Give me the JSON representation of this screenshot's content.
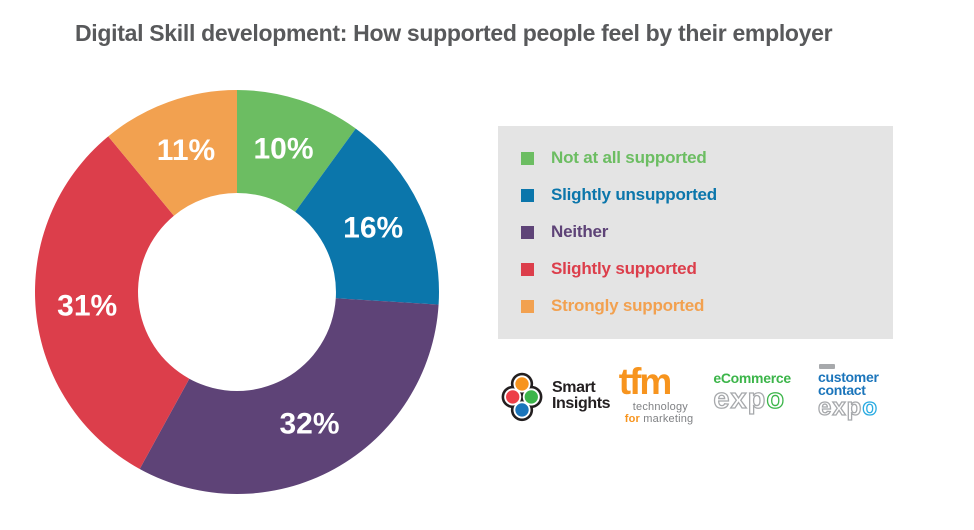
{
  "title": "Digital Skill development: How supported people feel by their employer",
  "chart_data": {
    "type": "pie",
    "subtype": "donut",
    "title": "Digital Skill development: How supported people feel by their employer",
    "categories": [
      "Not at all supported",
      "Slightly unsupported",
      "Neither",
      "Slightly supported",
      "Strongly supported"
    ],
    "values": [
      10,
      16,
      32,
      31,
      11
    ],
    "labels": [
      "10%",
      "16%",
      "32%",
      "31%",
      "11%"
    ],
    "colors": [
      "#6cbd62",
      "#0b76ab",
      "#5e4377",
      "#dc3e4b",
      "#f2a150"
    ],
    "start_angle_deg": 0,
    "direction": "clockwise",
    "inner_radius_ratio": 0.49,
    "label_color": "#ffffff",
    "legend_position": "right"
  },
  "legend": {
    "background": "#e4e4e4",
    "items": [
      {
        "label": "Not at all supported",
        "color": "#6cbd62"
      },
      {
        "label": "Slightly unsupported",
        "color": "#0b76ab"
      },
      {
        "label": "Neither",
        "color": "#5e4377"
      },
      {
        "label": "Slightly supported",
        "color": "#dc3e4b"
      },
      {
        "label": "Strongly supported",
        "color": "#f2a150"
      }
    ]
  },
  "logos": {
    "smart_insights": {
      "line1": "Smart",
      "line2": "Insights",
      "dot_colors": {
        "top": "#f7941e",
        "left": "#ed3e48",
        "right": "#3cb54a",
        "bottom": "#1b75bb"
      }
    },
    "tfm": {
      "name": "tfm",
      "tagline1": "technology",
      "tagline2_accent": "for",
      "tagline2_rest": " marketing"
    },
    "ecommerce_expo": {
      "line1": "eCommerce",
      "expo_outline": "exp",
      "expo_accent": "o"
    },
    "customer_contact_expo": {
      "line1": "customer",
      "line2": "contact",
      "expo_outline": "exp",
      "expo_accent": "o"
    }
  }
}
